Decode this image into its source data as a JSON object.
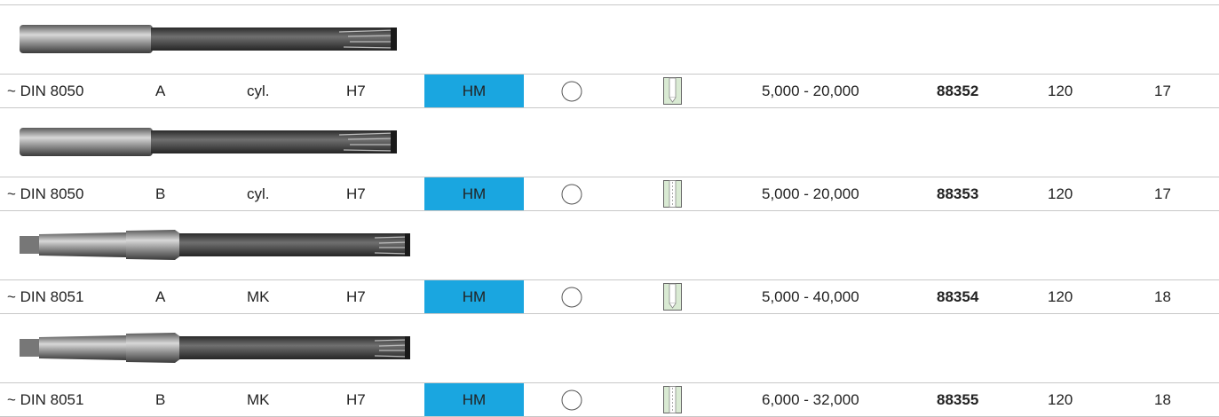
{
  "table": {
    "rows": [
      {
        "standard": "~ DIN 8050",
        "form": "A",
        "shank": "cyl.",
        "tolerance": "H7",
        "material": "HM",
        "range": "5,000 - 20,000",
        "article": "88352",
        "size": "120",
        "page": "17"
      },
      {
        "standard": "~ DIN 8050",
        "form": "B",
        "shank": "cyl.",
        "tolerance": "H7",
        "material": "HM",
        "range": "5,000 - 20,000",
        "article": "88353",
        "size": "120",
        "page": "17"
      },
      {
        "standard": "~ DIN 8051",
        "form": "A",
        "shank": "MK",
        "tolerance": "H7",
        "material": "HM",
        "range": "5,000 - 40,000",
        "article": "88354",
        "size": "120",
        "page": "18"
      },
      {
        "standard": "~ DIN 8051",
        "form": "B",
        "shank": "MK",
        "tolerance": "H7",
        "material": "HM",
        "range": "6,000 - 32,000",
        "article": "88355",
        "size": "120",
        "page": "18"
      }
    ]
  }
}
